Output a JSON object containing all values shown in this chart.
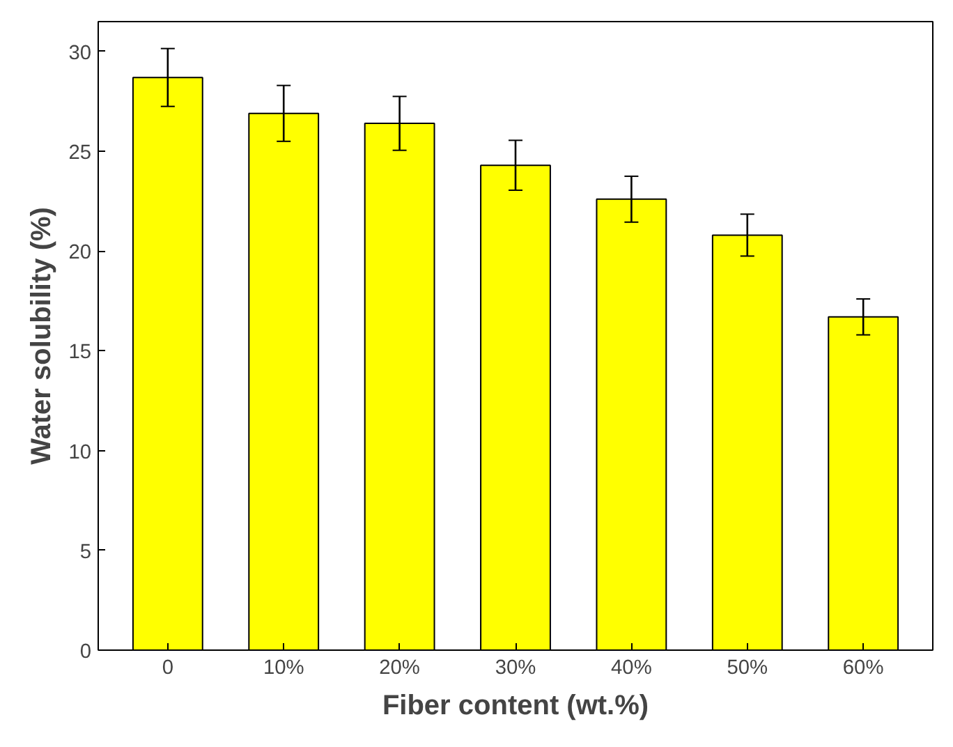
{
  "chart_data": {
    "type": "bar",
    "xlabel": "Fiber content (wt.%)",
    "ylabel": "Water solubility (%)",
    "categories": [
      "0",
      "10%",
      "20%",
      "30%",
      "40%",
      "50%",
      "60%"
    ],
    "values": [
      28.7,
      26.9,
      26.4,
      24.3,
      22.6,
      20.8,
      16.7
    ],
    "errors": [
      1.45,
      1.4,
      1.35,
      1.25,
      1.15,
      1.05,
      0.9
    ],
    "color": "#ffff00",
    "ylim": [
      0,
      31.5
    ],
    "yticks": [
      0,
      5,
      10,
      15,
      20,
      25,
      30
    ],
    "grid": false
  }
}
